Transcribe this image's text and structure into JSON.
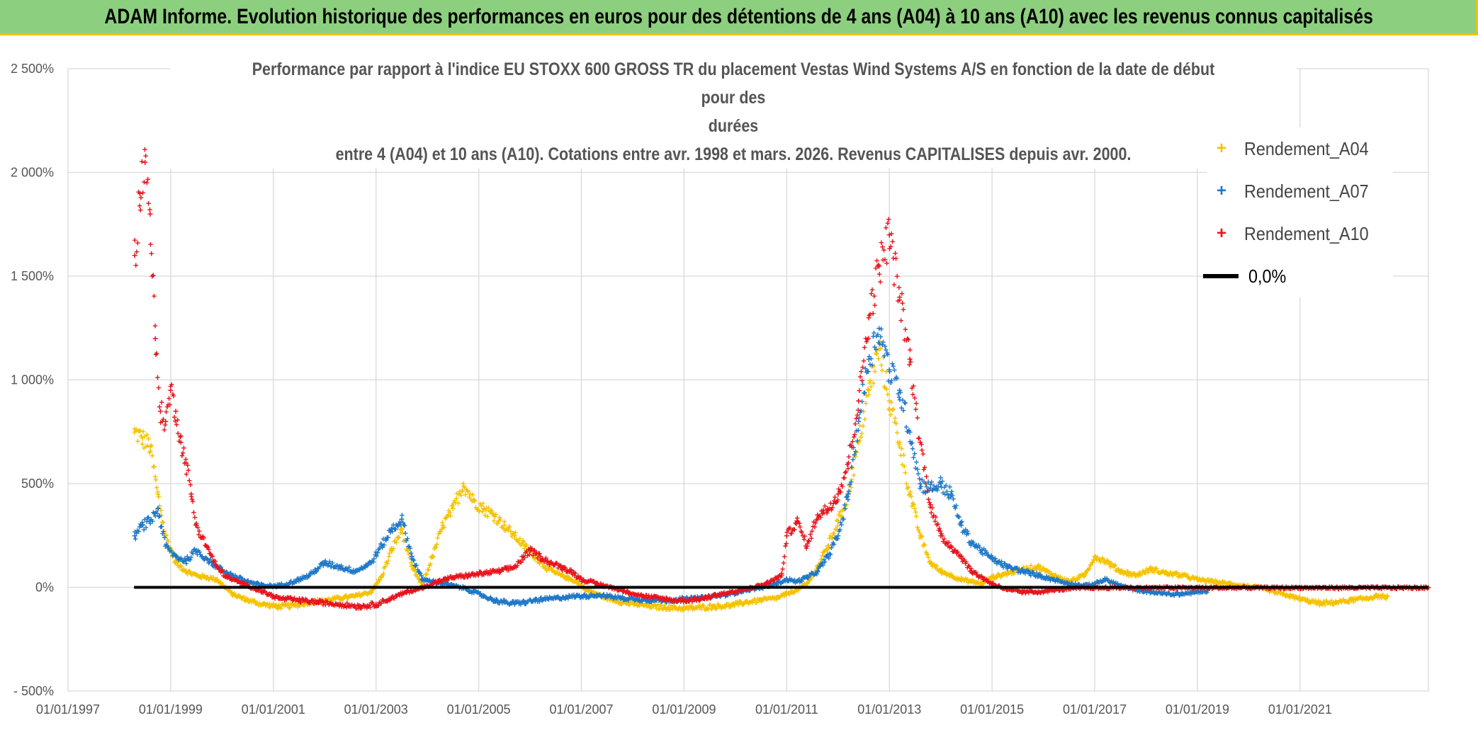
{
  "banner": {
    "text": "ADAM Informe. Evolution historique des performances en euros pour des détentions de 4 ans (A04) à 10 ans (A10) avec les revenus connus capitalisés"
  },
  "chart_data": {
    "type": "scatter",
    "title_lines": [
      "Performance par rapport à l'indice EU STOXX 600 GROSS TR  du placement Vestas Wind Systems A/S en fonction de la date de début pour des",
      "durées",
      "entre 4 (A04) et 10 ans (A10). Cotations entre avr. 1998 et mars. 2026. Revenus CAPITALISES depuis avr. 2000."
    ],
    "xlabel": "",
    "ylabel": "",
    "ylim": [
      -500,
      2500
    ],
    "y_ticks": [
      -500,
      0,
      500,
      1000,
      1500,
      2000,
      2500
    ],
    "y_tick_labels": [
      "- 500%",
      "0%",
      "500%",
      "1 000%",
      "1 500%",
      "2 000%",
      "2 500%"
    ],
    "xlim": [
      1997.0,
      2023.5
    ],
    "x_ticks": [
      1997,
      1999,
      2001,
      2003,
      2005,
      2007,
      2009,
      2011,
      2013,
      2015,
      2017,
      2019,
      2021
    ],
    "x_tick_labels": [
      "01/01/1997",
      "01/01/1999",
      "01/01/2001",
      "01/01/2003",
      "01/01/2005",
      "01/01/2007",
      "01/01/2009",
      "01/01/2011",
      "01/01/2013",
      "01/01/2015",
      "01/01/2017",
      "01/01/2019",
      "01/01/2021"
    ],
    "legend_position": "top-right",
    "grid": true,
    "series": [
      {
        "name": "Rendement_A04",
        "color": "#f5c200",
        "marker": "+",
        "x": [
          1998.3,
          1998.45,
          1998.6,
          1998.75,
          1998.9,
          1999.1,
          1999.3,
          1999.5,
          1999.7,
          1999.9,
          2000.2,
          2000.5,
          2000.8,
          2001.1,
          2001.4,
          2001.7,
          2002.0,
          2002.3,
          2002.6,
          2002.9,
          2003.1,
          2003.3,
          2003.5,
          2003.7,
          2003.9,
          2004.1,
          2004.3,
          2004.5,
          2004.7,
          2004.9,
          2005.1,
          2005.3,
          2005.5,
          2005.7,
          2005.9,
          2006.1,
          2006.3,
          2006.5,
          2006.7,
          2006.9,
          2007.1,
          2007.3,
          2007.5,
          2007.8,
          2008.1,
          2008.4,
          2008.7,
          2009.0,
          2009.3,
          2009.6,
          2009.9,
          2010.2,
          2010.5,
          2010.8,
          2011.0,
          2011.2,
          2011.4,
          2011.6,
          2011.8,
          2012.0,
          2012.2,
          2012.4,
          2012.6,
          2012.8,
          2013.0,
          2013.2,
          2013.4,
          2013.6,
          2013.8,
          2014.0,
          2014.2,
          2014.4,
          2014.6,
          2014.8,
          2015.0,
          2015.3,
          2015.6,
          2015.9,
          2016.2,
          2016.5,
          2016.8,
          2017.0,
          2017.2,
          2017.5,
          2017.8,
          2018.1,
          2018.4,
          2018.7,
          2019.0,
          2019.3,
          2019.6,
          2019.9,
          2020.2,
          2020.5,
          2020.8,
          2021.1,
          2021.4,
          2021.7,
          2022.0,
          2022.3,
          2022.5,
          2022.7
        ],
        "y": [
          750,
          720,
          680,
          450,
          250,
          120,
          80,
          60,
          50,
          40,
          -30,
          -60,
          -80,
          -90,
          -85,
          -70,
          -60,
          -50,
          -40,
          -20,
          50,
          180,
          280,
          100,
          10,
          150,
          300,
          380,
          500,
          420,
          380,
          350,
          300,
          250,
          200,
          150,
          100,
          70,
          50,
          30,
          -10,
          -30,
          -50,
          -70,
          -80,
          -90,
          -95,
          -100,
          -95,
          -90,
          -85,
          -70,
          -60,
          -50,
          -30,
          -10,
          20,
          100,
          200,
          320,
          450,
          700,
          950,
          1150,
          900,
          700,
          450,
          250,
          120,
          80,
          60,
          40,
          30,
          20,
          50,
          70,
          90,
          100,
          60,
          30,
          60,
          150,
          130,
          80,
          60,
          90,
          70,
          60,
          40,
          30,
          20,
          10,
          0,
          -20,
          -40,
          -60,
          -75,
          -70,
          -60,
          -50,
          -40,
          -45
        ]
      },
      {
        "name": "Rendement_A07",
        "color": "#1f78c8",
        "marker": "+",
        "x": [
          1998.3,
          1998.45,
          1998.6,
          1998.75,
          1998.9,
          1999.1,
          1999.3,
          1999.5,
          1999.7,
          1999.9,
          2000.2,
          2000.5,
          2000.8,
          2001.1,
          2001.4,
          2001.7,
          2002.0,
          2002.3,
          2002.6,
          2002.9,
          2003.1,
          2003.3,
          2003.5,
          2003.7,
          2003.9,
          2004.1,
          2004.3,
          2004.5,
          2004.7,
          2004.9,
          2005.1,
          2005.3,
          2005.5,
          2005.7,
          2005.9,
          2006.1,
          2006.3,
          2006.5,
          2006.7,
          2006.9,
          2007.1,
          2007.3,
          2007.5,
          2007.8,
          2008.1,
          2008.4,
          2008.7,
          2009.0,
          2009.3,
          2009.6,
          2009.9,
          2010.2,
          2010.5,
          2010.8,
          2011.0,
          2011.2,
          2011.4,
          2011.6,
          2011.8,
          2012.0,
          2012.2,
          2012.4,
          2012.6,
          2012.8,
          2013.0,
          2013.2,
          2013.4,
          2013.6,
          2013.8,
          2014.0,
          2014.2,
          2014.4,
          2014.6,
          2014.8,
          2015.0,
          2015.3,
          2015.6,
          2015.9,
          2016.2,
          2016.5,
          2016.8,
          2017.0,
          2017.2,
          2017.5,
          2017.8,
          2018.1,
          2018.4,
          2018.7,
          2019.0,
          2019.2
        ],
        "y": [
          250,
          300,
          320,
          380,
          200,
          150,
          130,
          180,
          140,
          100,
          60,
          30,
          10,
          10,
          30,
          60,
          120,
          100,
          80,
          120,
          200,
          280,
          330,
          150,
          40,
          30,
          20,
          10,
          0,
          -20,
          -40,
          -60,
          -70,
          -75,
          -70,
          -60,
          -55,
          -50,
          -45,
          -40,
          -40,
          -35,
          -40,
          -50,
          -55,
          -60,
          -60,
          -55,
          -50,
          -40,
          -30,
          -10,
          0,
          20,
          40,
          30,
          50,
          80,
          150,
          250,
          450,
          800,
          1100,
          1250,
          1050,
          950,
          750,
          500,
          480,
          500,
          450,
          300,
          220,
          180,
          140,
          100,
          80,
          60,
          40,
          20,
          10,
          20,
          40,
          10,
          -10,
          -20,
          -30,
          -30,
          -20,
          -15
        ]
      },
      {
        "name": "Rendement_A10",
        "color": "#e8141c",
        "marker": "+",
        "x": [
          1998.3,
          1998.4,
          1998.5,
          1998.6,
          1998.7,
          1998.8,
          1998.9,
          1999.0,
          1999.1,
          1999.2,
          1999.3,
          1999.4,
          1999.5,
          1999.7,
          1999.9,
          2000.1,
          2000.4,
          2000.8,
          2001.1,
          2001.5,
          2001.9,
          2002.3,
          2002.7,
          2003.0,
          2003.3,
          2003.6,
          2003.9,
          2004.2,
          2004.5,
          2004.8,
          2005.1,
          2005.4,
          2005.7,
          2006.0,
          2006.2,
          2006.4,
          2006.6,
          2006.8,
          2007.0,
          2007.3,
          2007.6,
          2007.9,
          2008.2,
          2008.5,
          2008.8,
          2009.1,
          2009.4,
          2009.7,
          2010.0,
          2010.3,
          2010.6,
          2010.9,
          2011.0,
          2011.2,
          2011.4,
          2011.6,
          2011.8,
          2012.0,
          2012.2,
          2012.4,
          2012.6,
          2012.8,
          2013.0,
          2013.2,
          2013.4,
          2013.6,
          2013.8,
          2014.0,
          2014.2,
          2014.4,
          2014.6,
          2014.8,
          2015.0,
          2015.3,
          2015.6,
          2015.9,
          2016.2,
          2016.5,
          2016.8,
          2017.2,
          2017.6,
          2018.0,
          2018.5,
          2019.0,
          2019.5,
          2020.0,
          2020.5,
          2021.0,
          2021.5,
          2022.0,
          2022.5,
          2023.0,
          2023.5
        ],
        "y": [
          1600,
          1900,
          2050,
          1800,
          1200,
          850,
          800,
          950,
          850,
          700,
          600,
          450,
          300,
          200,
          100,
          50,
          20,
          -20,
          -50,
          -60,
          -70,
          -80,
          -90,
          -80,
          -50,
          -20,
          0,
          30,
          50,
          60,
          70,
          80,
          100,
          180,
          150,
          120,
          100,
          80,
          40,
          20,
          0,
          -20,
          -40,
          -50,
          -60,
          -60,
          -50,
          -30,
          -20,
          0,
          20,
          60,
          250,
          320,
          200,
          350,
          380,
          450,
          600,
          900,
          1300,
          1550,
          1700,
          1400,
          1100,
          700,
          400,
          250,
          200,
          150,
          80,
          50,
          20,
          -10,
          -20,
          -20,
          -10,
          -5,
          0,
          0,
          0,
          0,
          0,
          0,
          0,
          0,
          0,
          0,
          0,
          0,
          0,
          0,
          0
        ]
      }
    ],
    "reference_line": {
      "name": "0,0%",
      "color": "#000000",
      "y": 0,
      "x_start": 1998.3,
      "x_end": 2023.5
    }
  }
}
